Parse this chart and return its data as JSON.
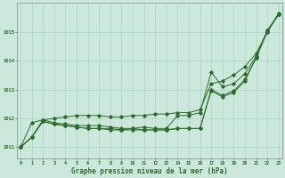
{
  "title": "Graphe pression niveau de la mer (hPa)",
  "background_color": "#cce8dc",
  "grid_color": "#aad4c0",
  "line_color": "#2d6a2d",
  "ylim": [
    1010.6,
    1016.0
  ],
  "y_ticks": [
    1011,
    1012,
    1013,
    1014,
    1015
  ],
  "x_ticks": [
    0,
    1,
    2,
    3,
    4,
    5,
    6,
    7,
    8,
    9,
    10,
    11,
    12,
    13,
    14,
    15,
    16,
    17,
    18,
    19,
    20,
    21,
    22,
    23
  ],
  "series1": [
    1011.0,
    1011.85,
    1011.95,
    1012.0,
    1012.05,
    1012.1,
    1012.1,
    1012.1,
    1012.05,
    1012.05,
    1012.1,
    1012.1,
    1012.15,
    1012.15,
    1012.2,
    1012.2,
    1012.3,
    1013.2,
    1013.3,
    1013.5,
    1013.8,
    1014.25,
    1015.0,
    1015.65
  ],
  "series2": [
    1011.0,
    1011.35,
    1011.95,
    1011.85,
    1011.8,
    1011.75,
    1011.75,
    1011.75,
    1011.7,
    1011.65,
    1011.65,
    1011.7,
    1011.65,
    1011.65,
    1012.1,
    1012.1,
    1012.2,
    1013.6,
    1013.1,
    1013.2,
    1013.55,
    1014.15,
    1015.05,
    1015.6
  ],
  "series3": [
    1011.0,
    1011.35,
    1011.9,
    1011.8,
    1011.75,
    1011.7,
    1011.65,
    1011.65,
    1011.65,
    1011.6,
    1011.65,
    1011.6,
    1011.6,
    1011.6,
    1011.65,
    1011.65,
    1011.65,
    1013.0,
    1012.8,
    1012.95,
    1013.35,
    1014.1,
    1015.05,
    1015.6
  ],
  "series4": [
    1011.0,
    1011.35,
    1011.9,
    1011.8,
    1011.75,
    1011.7,
    1011.65,
    1011.65,
    1011.6,
    1011.6,
    1011.6,
    1011.6,
    1011.6,
    1011.6,
    1011.65,
    1011.65,
    1011.65,
    1012.95,
    1012.75,
    1012.9,
    1013.3,
    1014.1,
    1015.0,
    1015.6
  ]
}
